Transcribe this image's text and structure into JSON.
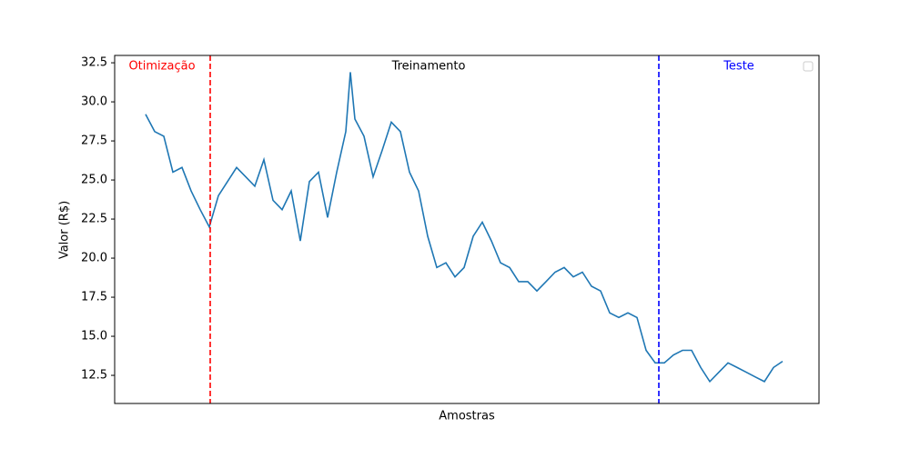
{
  "chart_data": {
    "type": "line",
    "x_label": "Amostras",
    "y_label": "Valor (R$)",
    "x": [
      0,
      10,
      20,
      30,
      40,
      50,
      60,
      70,
      80,
      90,
      100,
      110,
      120,
      130,
      140,
      150,
      160,
      170,
      180,
      190,
      200,
      210,
      220,
      225,
      230,
      240,
      250,
      260,
      270,
      280,
      290,
      300,
      310,
      320,
      330,
      340,
      350,
      360,
      370,
      380,
      390,
      400,
      410,
      420,
      430,
      440,
      450,
      460,
      470,
      480,
      490,
      500,
      510,
      520,
      530,
      540,
      550,
      560,
      570,
      580,
      590,
      600,
      610,
      620,
      630,
      640,
      650,
      660,
      670,
      680,
      690,
      700
    ],
    "series": [
      {
        "color": "#1f77b4",
        "values": [
          29.2,
          28.1,
          27.8,
          25.5,
          25.8,
          24.3,
          23.1,
          22.0,
          24.0,
          24.9,
          25.8,
          25.2,
          24.6,
          26.3,
          23.7,
          23.1,
          24.3,
          21.1,
          24.9,
          25.5,
          22.6,
          25.5,
          28.1,
          31.9,
          28.9,
          27.8,
          25.2,
          26.9,
          28.7,
          28.1,
          25.5,
          24.3,
          21.4,
          19.4,
          19.7,
          18.8,
          19.4,
          21.4,
          22.3,
          21.1,
          19.7,
          19.4,
          18.5,
          18.5,
          17.9,
          18.5,
          19.1,
          19.4,
          18.8,
          19.1,
          18.2,
          17.9,
          16.5,
          16.2,
          16.5,
          16.2,
          14.1,
          13.3,
          13.3,
          13.8,
          14.1,
          14.1,
          13.0,
          12.1,
          12.7,
          13.3,
          13.0,
          12.7,
          12.4,
          12.1,
          13.0,
          13.4
        ]
      }
    ],
    "xlim": [
      -34,
      740
    ],
    "ylim": [
      10.7,
      32.97
    ],
    "yticks": [
      12.5,
      {
        "value": 15,
        "label": "15.0"
      },
      17.5,
      {
        "value": 20,
        "label": "20.0"
      },
      22.5,
      {
        "value": 25,
        "label": "25.0"
      },
      27.5,
      {
        "value": 30,
        "label": "30.0"
      },
      32.5
    ],
    "vlines": [
      {
        "x": 71,
        "color": "red"
      },
      {
        "x": 564,
        "color": "blue"
      }
    ],
    "annotations": [
      {
        "text": "Otimização",
        "color": "red"
      },
      {
        "text": "Treinamento",
        "color": "black"
      },
      {
        "text": "Teste",
        "color": "blue"
      }
    ]
  }
}
